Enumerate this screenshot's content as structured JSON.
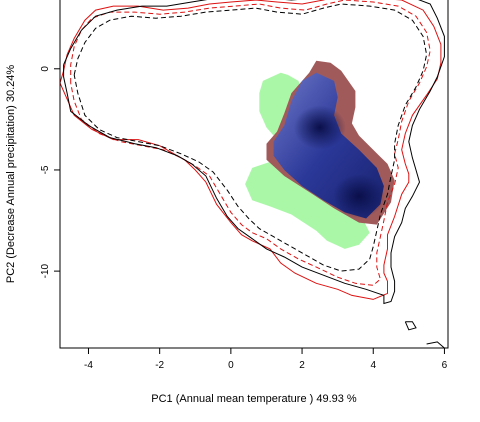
{
  "chart_data": {
    "type": "density-contour",
    "xlabel": "PC1 (Annual mean temperature ) 49.93 %",
    "ylabel": "PC2 (Decrease Annual precipitation) 30.24%",
    "xlim": [
      -4.8,
      6.1
    ],
    "ylim": [
      -13.8,
      3.4
    ],
    "x_ticks": [
      -4,
      -2,
      0,
      2,
      4,
      6
    ],
    "y_ticks": [
      0,
      -5,
      -10
    ],
    "grid": false,
    "colors": {
      "green_region": "#aaf7a8",
      "red_region": "#a05a5a",
      "blue_density": "#1e2a8c",
      "red_contour": "#dd1111",
      "black_contour": "#000000"
    },
    "regions": {
      "green": [
        [
          1.6,
          -0.3
        ],
        [
          1.4,
          -0.2
        ],
        [
          0.9,
          -0.6
        ],
        [
          0.8,
          -1.2
        ],
        [
          0.8,
          -2.1
        ],
        [
          1.0,
          -2.9
        ],
        [
          1.2,
          -3.3
        ],
        [
          1.4,
          -4.1
        ],
        [
          1.1,
          -4.6
        ],
        [
          0.6,
          -4.9
        ],
        [
          0.4,
          -5.7
        ],
        [
          0.6,
          -6.5
        ],
        [
          1.1,
          -6.8
        ],
        [
          1.7,
          -7.2
        ],
        [
          2.4,
          -8.0
        ],
        [
          2.7,
          -8.5
        ],
        [
          3.2,
          -8.9
        ],
        [
          3.6,
          -8.7
        ],
        [
          3.9,
          -8.1
        ],
        [
          3.7,
          -7.4
        ],
        [
          3.3,
          -6.6
        ],
        [
          2.9,
          -5.8
        ],
        [
          2.7,
          -4.6
        ],
        [
          2.3,
          -3.4
        ],
        [
          2.1,
          -2.2
        ],
        [
          2.0,
          -1.2
        ],
        [
          1.9,
          -0.6
        ],
        [
          1.6,
          -0.3
        ]
      ],
      "red": [
        [
          2.2,
          -0.2
        ],
        [
          2.4,
          0.4
        ],
        [
          2.8,
          0.3
        ],
        [
          3.1,
          -0.1
        ],
        [
          3.3,
          -0.6
        ],
        [
          3.5,
          -1.1
        ],
        [
          3.5,
          -1.9
        ],
        [
          3.4,
          -2.7
        ],
        [
          3.6,
          -3.3
        ],
        [
          4.0,
          -4.0
        ],
        [
          4.4,
          -4.7
        ],
        [
          4.6,
          -5.5
        ],
        [
          4.5,
          -6.6
        ],
        [
          4.1,
          -7.7
        ],
        [
          3.6,
          -7.6
        ],
        [
          2.9,
          -6.9
        ],
        [
          2.3,
          -6.2
        ],
        [
          1.5,
          -5.3
        ],
        [
          1.0,
          -4.5
        ],
        [
          1.0,
          -3.7
        ],
        [
          1.3,
          -3.1
        ],
        [
          1.5,
          -2.2
        ],
        [
          1.7,
          -1.2
        ],
        [
          2.2,
          -0.2
        ]
      ],
      "blue": [
        [
          2.0,
          -0.6
        ],
        [
          2.4,
          -0.2
        ],
        [
          2.9,
          -0.6
        ],
        [
          3.0,
          -1.4
        ],
        [
          2.9,
          -2.3
        ],
        [
          3.1,
          -3.2
        ],
        [
          3.6,
          -4.0
        ],
        [
          4.1,
          -4.9
        ],
        [
          4.3,
          -5.8
        ],
        [
          4.2,
          -6.7
        ],
        [
          3.8,
          -7.4
        ],
        [
          3.2,
          -7.1
        ],
        [
          2.6,
          -6.5
        ],
        [
          2.0,
          -5.8
        ],
        [
          1.5,
          -5.0
        ],
        [
          1.2,
          -4.3
        ],
        [
          1.2,
          -3.6
        ],
        [
          1.5,
          -2.8
        ],
        [
          1.7,
          -1.6
        ],
        [
          2.0,
          -0.6
        ]
      ],
      "blue_cores": [
        [
          2.5,
          -2.9
        ],
        [
          3.6,
          -6.3
        ]
      ]
    },
    "series": [
      {
        "color": "#dd1111",
        "dash": "solid",
        "points": [
          [
            -4.8,
            -0.7
          ],
          [
            -4.7,
            -0.1
          ],
          [
            -4.6,
            0.7
          ],
          [
            -4.4,
            1.5
          ],
          [
            -4.1,
            2.4
          ],
          [
            -3.8,
            2.9
          ],
          [
            -3.3,
            3.1
          ],
          [
            -2.6,
            3.1
          ],
          [
            -1.9,
            2.9
          ],
          [
            -1.2,
            3.0
          ],
          [
            -0.6,
            3.2
          ],
          [
            0.0,
            3.3
          ],
          [
            0.7,
            3.4
          ],
          [
            1.3,
            3.3
          ],
          [
            2.0,
            3.2
          ],
          [
            2.6,
            3.4
          ],
          [
            3.0,
            3.6
          ],
          [
            3.3,
            3.5
          ],
          [
            4.1,
            3.5
          ],
          [
            4.8,
            3.4
          ],
          [
            5.4,
            2.9
          ],
          [
            5.7,
            2.1
          ],
          [
            5.9,
            1.2
          ],
          [
            5.9,
            0.3
          ],
          [
            5.8,
            -0.5
          ],
          [
            5.5,
            -1.3
          ],
          [
            5.1,
            -2.3
          ],
          [
            4.9,
            -3.2
          ],
          [
            4.8,
            -4.0
          ],
          [
            4.9,
            -4.7
          ],
          [
            5.0,
            -5.2
          ],
          [
            5.0,
            -5.6
          ],
          [
            4.8,
            -6.2
          ],
          [
            4.6,
            -7.3
          ],
          [
            4.4,
            -8.2
          ],
          [
            4.4,
            -8.9
          ],
          [
            4.3,
            -9.7
          ],
          [
            4.3,
            -10.1
          ],
          [
            4.4,
            -10.5
          ],
          [
            4.4,
            -11.1
          ],
          [
            4.0,
            -11.4
          ],
          [
            3.4,
            -11.2
          ],
          [
            3.0,
            -10.9
          ],
          [
            2.4,
            -10.6
          ],
          [
            1.8,
            -10.1
          ],
          [
            1.4,
            -9.6
          ],
          [
            1.1,
            -8.9
          ],
          [
            0.6,
            -8.5
          ],
          [
            0.3,
            -8.2
          ],
          [
            0.0,
            -7.6
          ],
          [
            -0.4,
            -6.7
          ],
          [
            -0.7,
            -5.6
          ],
          [
            -1.0,
            -5.0
          ],
          [
            -1.3,
            -4.5
          ],
          [
            -1.6,
            -4.2
          ],
          [
            -2.0,
            -3.8
          ],
          [
            -2.6,
            -3.5
          ],
          [
            -3.3,
            -3.5
          ],
          [
            -3.9,
            -3.0
          ],
          [
            -4.4,
            -2.3
          ],
          [
            -4.6,
            -1.5
          ],
          [
            -4.8,
            -0.7
          ]
        ]
      },
      {
        "color": "#dd1111",
        "dash": "dashed",
        "points": [
          [
            -4.5,
            -0.7
          ],
          [
            -4.5,
            0.2
          ],
          [
            -4.4,
            1.1
          ],
          [
            -4.2,
            1.9
          ],
          [
            -3.9,
            2.5
          ],
          [
            -3.4,
            2.8
          ],
          [
            -2.7,
            2.8
          ],
          [
            -2.0,
            2.7
          ],
          [
            -1.3,
            2.8
          ],
          [
            -0.6,
            3.0
          ],
          [
            0.1,
            3.1
          ],
          [
            0.8,
            3.2
          ],
          [
            1.4,
            3.0
          ],
          [
            2.1,
            2.9
          ],
          [
            2.7,
            3.2
          ],
          [
            3.2,
            3.4
          ],
          [
            4.0,
            3.3
          ],
          [
            4.7,
            3.1
          ],
          [
            5.2,
            2.6
          ],
          [
            5.5,
            1.8
          ],
          [
            5.6,
            0.9
          ],
          [
            5.5,
            0.1
          ],
          [
            5.3,
            -0.7
          ],
          [
            5.0,
            -1.6
          ],
          [
            4.8,
            -2.6
          ],
          [
            4.7,
            -3.5
          ],
          [
            4.6,
            -4.2
          ],
          [
            4.7,
            -4.9
          ],
          [
            4.6,
            -5.7
          ],
          [
            4.4,
            -6.6
          ],
          [
            4.3,
            -7.5
          ],
          [
            4.2,
            -8.3
          ],
          [
            4.1,
            -9.1
          ],
          [
            4.1,
            -9.8
          ],
          [
            4.2,
            -10.4
          ],
          [
            4.0,
            -10.7
          ],
          [
            3.5,
            -10.6
          ],
          [
            3.0,
            -10.3
          ],
          [
            2.4,
            -9.8
          ],
          [
            1.9,
            -9.4
          ],
          [
            1.4,
            -8.9
          ],
          [
            1.0,
            -8.4
          ],
          [
            0.6,
            -8.1
          ],
          [
            0.3,
            -7.7
          ],
          [
            0.0,
            -7.1
          ],
          [
            -0.3,
            -6.2
          ],
          [
            -0.6,
            -5.3
          ],
          [
            -1.0,
            -4.8
          ],
          [
            -1.4,
            -4.4
          ],
          [
            -1.9,
            -4.0
          ],
          [
            -2.5,
            -3.8
          ],
          [
            -3.1,
            -3.6
          ],
          [
            -3.7,
            -3.2
          ],
          [
            -4.2,
            -2.5
          ],
          [
            -4.4,
            -1.6
          ],
          [
            -4.5,
            -0.7
          ]
        ]
      },
      {
        "color": "#000000",
        "dash": "solid",
        "points": [
          [
            -4.7,
            0.2
          ],
          [
            -4.5,
            1.0
          ],
          [
            -4.2,
            1.9
          ],
          [
            -3.8,
            2.6
          ],
          [
            -3.2,
            2.9
          ],
          [
            -2.5,
            3.1
          ],
          [
            -1.8,
            3.1
          ],
          [
            -1.1,
            3.3
          ],
          [
            -0.4,
            3.5
          ],
          [
            0.3,
            3.6
          ],
          [
            1.0,
            3.5
          ],
          [
            1.7,
            3.4
          ],
          [
            2.4,
            3.5
          ],
          [
            2.9,
            3.8
          ],
          [
            3.4,
            3.9
          ],
          [
            4.2,
            3.8
          ],
          [
            5.0,
            3.6
          ],
          [
            5.6,
            3.2
          ],
          [
            5.8,
            2.5
          ],
          [
            6.0,
            1.6
          ],
          [
            6.0,
            0.6
          ],
          [
            5.8,
            -0.4
          ],
          [
            5.6,
            -1.1
          ],
          [
            5.3,
            -2.0
          ],
          [
            5.1,
            -2.8
          ],
          [
            5.0,
            -3.6
          ],
          [
            5.1,
            -4.4
          ],
          [
            5.2,
            -5.0
          ],
          [
            5.3,
            -5.6
          ],
          [
            5.1,
            -6.3
          ],
          [
            4.9,
            -6.9
          ],
          [
            4.8,
            -7.6
          ],
          [
            4.6,
            -8.3
          ],
          [
            4.5,
            -9.1
          ],
          [
            4.5,
            -9.8
          ],
          [
            4.6,
            -10.5
          ],
          [
            4.6,
            -11.0
          ],
          [
            4.5,
            -11.5
          ],
          [
            4.3,
            -11.6
          ],
          [
            4.3,
            -11.2
          ],
          [
            3.8,
            -10.9
          ],
          [
            3.2,
            -10.6
          ],
          [
            2.6,
            -10.2
          ],
          [
            2.0,
            -9.8
          ],
          [
            1.5,
            -9.3
          ],
          [
            1.0,
            -8.9
          ],
          [
            0.6,
            -8.4
          ],
          [
            0.2,
            -7.9
          ],
          [
            -0.1,
            -7.3
          ],
          [
            -0.4,
            -6.4
          ],
          [
            -0.7,
            -5.3
          ],
          [
            -1.1,
            -4.7
          ],
          [
            -1.5,
            -4.3
          ],
          [
            -2.1,
            -3.9
          ],
          [
            -2.7,
            -3.7
          ],
          [
            -3.4,
            -3.4
          ],
          [
            -4.0,
            -2.8
          ],
          [
            -4.5,
            -2.1
          ],
          [
            -4.6,
            -1.2
          ],
          [
            -4.7,
            -0.4
          ],
          [
            -4.7,
            0.2
          ]
        ]
      },
      {
        "color": "#000000",
        "dash": "dashed",
        "points": [
          [
            -4.4,
            -0.3
          ],
          [
            -4.3,
            0.5
          ],
          [
            -4.1,
            1.3
          ],
          [
            -3.8,
            2.0
          ],
          [
            -3.4,
            2.4
          ],
          [
            -2.8,
            2.6
          ],
          [
            -2.1,
            2.5
          ],
          [
            -1.4,
            2.6
          ],
          [
            -0.7,
            2.8
          ],
          [
            0.0,
            2.9
          ],
          [
            0.7,
            3.0
          ],
          [
            1.3,
            2.8
          ],
          [
            2.0,
            2.7
          ],
          [
            2.6,
            3.0
          ],
          [
            3.1,
            3.2
          ],
          [
            3.9,
            3.1
          ],
          [
            4.6,
            2.9
          ],
          [
            5.1,
            2.4
          ],
          [
            5.4,
            1.6
          ],
          [
            5.5,
            0.7
          ],
          [
            5.4,
            -0.1
          ],
          [
            5.2,
            -0.9
          ],
          [
            4.9,
            -1.8
          ],
          [
            4.7,
            -2.8
          ],
          [
            4.6,
            -3.7
          ],
          [
            4.6,
            -4.5
          ],
          [
            4.5,
            -5.3
          ],
          [
            4.4,
            -6.2
          ],
          [
            4.2,
            -7.2
          ],
          [
            4.1,
            -8.0
          ],
          [
            4.0,
            -8.8
          ],
          [
            3.9,
            -9.4
          ],
          [
            3.6,
            -9.9
          ],
          [
            3.1,
            -10.0
          ],
          [
            2.6,
            -9.7
          ],
          [
            2.1,
            -9.2
          ],
          [
            1.6,
            -8.7
          ],
          [
            1.2,
            -8.3
          ],
          [
            0.8,
            -7.9
          ],
          [
            0.5,
            -7.4
          ],
          [
            0.2,
            -6.8
          ],
          [
            -0.1,
            -6.0
          ],
          [
            -0.5,
            -5.1
          ],
          [
            -0.9,
            -4.6
          ],
          [
            -1.4,
            -4.2
          ],
          [
            -2.0,
            -3.8
          ],
          [
            -2.6,
            -3.6
          ],
          [
            -3.2,
            -3.4
          ],
          [
            -3.7,
            -3.0
          ],
          [
            -4.1,
            -2.3
          ],
          [
            -4.3,
            -1.2
          ],
          [
            -4.4,
            -0.3
          ]
        ]
      },
      {
        "color": "#000000",
        "dash": "solid",
        "points": [
          [
            4.9,
            -12.5
          ],
          [
            5.0,
            -12.9
          ],
          [
            5.2,
            -12.8
          ],
          [
            5.1,
            -12.5
          ],
          [
            4.9,
            -12.5
          ]
        ]
      },
      {
        "color": "#000000",
        "dash": "solid",
        "points": [
          [
            5.5,
            -13.6
          ],
          [
            5.8,
            -13.5
          ],
          [
            6.0,
            -13.8
          ]
        ]
      }
    ]
  }
}
